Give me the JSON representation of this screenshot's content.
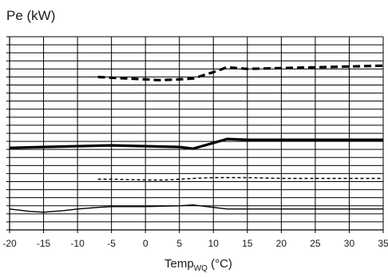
{
  "chart_data": {
    "type": "line",
    "ylabel": "Pe (kW)",
    "xlabel_main": "Temp",
    "xlabel_sub": "WQ",
    "xlabel_unit": " (°C)",
    "xlim": [
      -20,
      35
    ],
    "x_ticks": [
      -20,
      -15,
      -10,
      -5,
      0,
      5,
      10,
      15,
      20,
      25,
      30,
      35
    ],
    "ylim": [
      0,
      24
    ],
    "y_gridlines": 24,
    "y_ticks_labeled": false,
    "grid": true,
    "series": [
      {
        "style": "thick-dashed",
        "points": [
          [
            -7,
            19.0
          ],
          [
            -5,
            18.9
          ],
          [
            0,
            18.7
          ],
          [
            2,
            18.6
          ],
          [
            5,
            18.7
          ],
          [
            7,
            18.8
          ],
          [
            10,
            19.6
          ],
          [
            12,
            20.2
          ],
          [
            15,
            20.0
          ],
          [
            20,
            20.1
          ],
          [
            25,
            20.2
          ],
          [
            30,
            20.3
          ],
          [
            35,
            20.4
          ]
        ]
      },
      {
        "style": "thick-solid",
        "points": [
          [
            -20,
            10.2
          ],
          [
            -15,
            10.3
          ],
          [
            -10,
            10.4
          ],
          [
            -5,
            10.5
          ],
          [
            0,
            10.4
          ],
          [
            5,
            10.3
          ],
          [
            7,
            10.1
          ],
          [
            10,
            10.8
          ],
          [
            12,
            11.3
          ],
          [
            15,
            11.2
          ],
          [
            20,
            11.2
          ],
          [
            25,
            11.2
          ],
          [
            30,
            11.2
          ],
          [
            35,
            11.2
          ]
        ]
      },
      {
        "style": "thin-dashed",
        "points": [
          [
            -7,
            6.3
          ],
          [
            -5,
            6.3
          ],
          [
            0,
            6.2
          ],
          [
            3,
            6.2
          ],
          [
            5,
            6.3
          ],
          [
            7,
            6.4
          ],
          [
            10,
            6.5
          ],
          [
            12,
            6.5
          ],
          [
            15,
            6.5
          ],
          [
            20,
            6.4
          ],
          [
            25,
            6.4
          ],
          [
            30,
            6.4
          ],
          [
            35,
            6.4
          ]
        ]
      },
      {
        "style": "thin-solid",
        "points": [
          [
            -20,
            2.6
          ],
          [
            -17,
            2.3
          ],
          [
            -15,
            2.2
          ],
          [
            -12,
            2.4
          ],
          [
            -10,
            2.6
          ],
          [
            -7,
            2.8
          ],
          [
            -5,
            2.9
          ],
          [
            0,
            2.9
          ],
          [
            5,
            3.0
          ],
          [
            7,
            3.1
          ],
          [
            10,
            2.8
          ],
          [
            12,
            2.6
          ],
          [
            15,
            2.6
          ],
          [
            20,
            2.6
          ],
          [
            25,
            2.6
          ],
          [
            30,
            2.6
          ],
          [
            35,
            2.6
          ]
        ]
      }
    ]
  }
}
